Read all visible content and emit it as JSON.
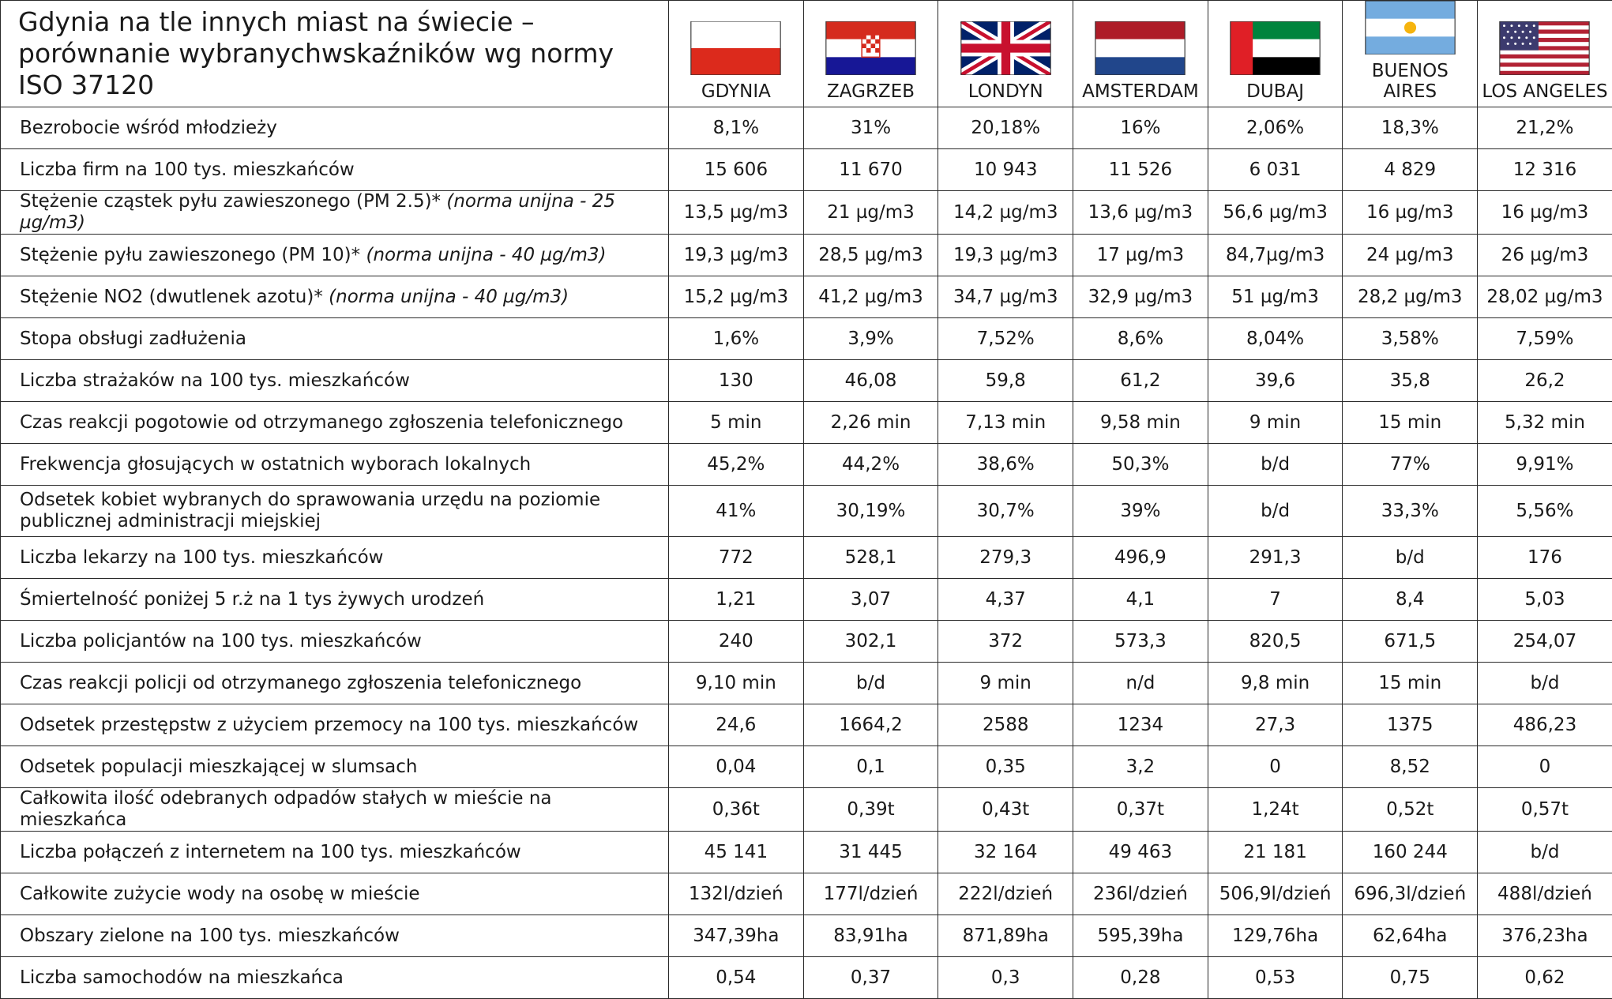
{
  "title": "Gdynia na tle innych miast na świecie – porównanie wybranychwskaźników wg normy ISO 37120",
  "columns": [
    "GDYNIA",
    "ZAGRZEB",
    "LONDYN",
    "AMSTERDAM",
    "DUBAJ",
    "BUENOS AIRES",
    "LOS ANGELES"
  ],
  "rows": [
    {
      "label": "Bezrobocie wśród młodzieży",
      "values": [
        "8,1%",
        "31%",
        "20,18%",
        "16%",
        "2,06%",
        "18,3%",
        "21,2%"
      ]
    },
    {
      "label": "Liczba firm na 100 tys. mieszkańców",
      "values": [
        "15 606",
        "11 670",
        "10 943",
        "11 526",
        "6 031",
        "4 829",
        "12 316"
      ]
    },
    {
      "label": "Stężenie cząstek pyłu zawieszonego (PM 2.5)*",
      "note": "(norma unijna - 25 µg/m3)",
      "values": [
        "13,5 µg/m3",
        "21 µg/m3",
        "14,2 µg/m3",
        "13,6 µg/m3",
        "56,6 µg/m3",
        "16 µg/m3",
        "16 µg/m3"
      ]
    },
    {
      "label": "Stężenie pyłu zawieszonego (PM 10)*",
      "note": "(norma unijna - 40 µg/m3)",
      "values": [
        "19,3 µg/m3",
        "28,5 µg/m3",
        "19,3 µg/m3",
        "17 µg/m3",
        "84,7µg/m3",
        "24 µg/m3",
        "26 µg/m3"
      ]
    },
    {
      "label": "Stężenie NO2 (dwutlenek azotu)*",
      "note": "(norma unijna - 40 µg/m3)",
      "values": [
        "15,2 µg/m3",
        "41,2 µg/m3",
        "34,7 µg/m3",
        "32,9 µg/m3",
        "51 µg/m3",
        "28,2 µg/m3",
        "28,02 µg/m3"
      ]
    },
    {
      "label": "Stopa obsługi zadłużenia",
      "values": [
        "1,6%",
        "3,9%",
        "7,52%",
        "8,6%",
        "8,04%",
        "3,58%",
        "7,59%"
      ]
    },
    {
      "label": "Liczba strażaków na 100 tys. mieszkańców",
      "values": [
        "130",
        "46,08",
        "59,8",
        "61,2",
        "39,6",
        "35,8",
        "26,2"
      ]
    },
    {
      "label": "Czas reakcji pogotowie od otrzymanego zgłoszenia telefonicznego",
      "values": [
        "5 min",
        "2,26 min",
        "7,13 min",
        "9,58 min",
        "9 min",
        "15 min",
        "5,32 min"
      ]
    },
    {
      "label": "Frekwencja głosujących w ostatnich wyborach lokalnych",
      "values": [
        "45,2%",
        "44,2%",
        "38,6%",
        "50,3%",
        "b/d",
        "77%",
        "9,91%"
      ]
    },
    {
      "label": "Odsetek kobiet wybranych do sprawowania urzędu na poziomie publicznej administracji miejskiej",
      "values": [
        "41%",
        "30,19%",
        "30,7%",
        "39%",
        "b/d",
        "33,3%",
        "5,56%"
      ]
    },
    {
      "label": "Liczba lekarzy na 100 tys. mieszkańców",
      "values": [
        "772",
        "528,1",
        "279,3",
        "496,9",
        "291,3",
        "b/d",
        "176"
      ]
    },
    {
      "label": "Śmiertelność poniżej 5 r.ż na 1 tys żywych urodzeń",
      "values": [
        "1,21",
        "3,07",
        "4,37",
        "4,1",
        "7",
        "8,4",
        "5,03"
      ]
    },
    {
      "label": "Liczba policjantów na 100 tys. mieszkańców",
      "values": [
        "240",
        "302,1",
        "372",
        "573,3",
        "820,5",
        "671,5",
        "254,07"
      ]
    },
    {
      "label": "Czas reakcji policji od otrzymanego zgłoszenia telefonicznego",
      "values": [
        "9,10 min",
        "b/d",
        "9 min",
        "n/d",
        "9,8 min",
        "15 min",
        "b/d"
      ]
    },
    {
      "label": "Odsetek przestępstw z użyciem przemocy na 100 tys. mieszkańców",
      "values": [
        "24,6",
        "1664,2",
        "2588",
        "1234",
        "27,3",
        "1375",
        "486,23"
      ]
    },
    {
      "label": "Odsetek populacji mieszkającej w slumsach",
      "values": [
        "0,04",
        "0,1",
        "0,35",
        "3,2",
        "0",
        "8,52",
        "0"
      ]
    },
    {
      "label": "Całkowita ilość odebranych odpadów stałych w mieście na mieszkańca",
      "values": [
        "0,36t",
        "0,39t",
        "0,43t",
        "0,37t",
        "1,24t",
        "0,52t",
        "0,57t"
      ]
    },
    {
      "label": "Liczba połączeń z internetem na 100 tys. mieszkańców",
      "values": [
        "45 141",
        "31 445",
        "32 164",
        "49 463",
        "21 181",
        "160 244",
        "b/d"
      ]
    },
    {
      "label": "Całkowite zużycie wody na osobę w mieście",
      "values": [
        "132l/dzień",
        "177l/dzień",
        "222l/dzień",
        "236l/dzień",
        "506,9l/dzień",
        "696,3l/dzień",
        "488l/dzień"
      ]
    },
    {
      "label": "Obszary zielone na 100 tys. mieszkańców",
      "values": [
        "347,39ha",
        "83,91ha",
        "871,89ha",
        "595,39ha",
        "129,76ha",
        "62,64ha",
        "376,23ha"
      ]
    },
    {
      "label": "Liczba samochodów na mieszkańca",
      "values": [
        "0,54",
        "0,37",
        "0,3",
        "0,28",
        "0,53",
        "0,75",
        "0,62"
      ]
    }
  ]
}
